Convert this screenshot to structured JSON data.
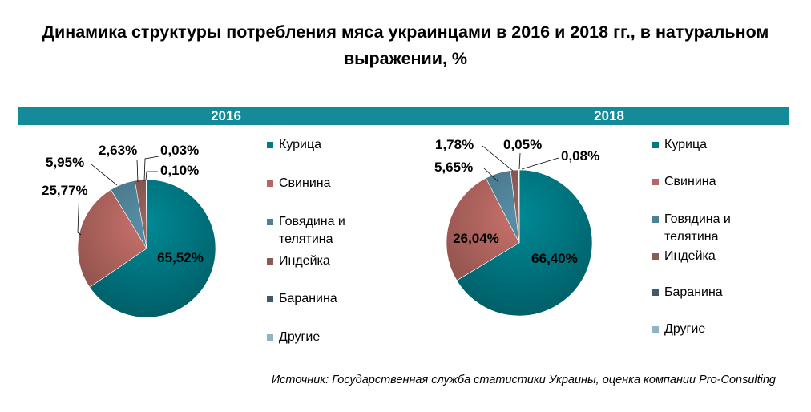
{
  "title": "Динамика структуры потребления мяса украинцами в 2016 и 2018 гг., в натуральном выражении, %",
  "source": "Источник: Государственная служба статистики Украины, оценка компании Pro-Consulting",
  "colors": {
    "band": "#138b98",
    "Курица": "#007a85",
    "Свинина": "#b46660",
    "Говядина и телятина": "#4f8196",
    "Индейка": "#8a5a55",
    "Баранина": "#3f5a6a",
    "Другие": "#8fb4c4"
  },
  "chart_data": [
    {
      "type": "pie",
      "title": "2016",
      "labels": [
        "Курица",
        "Свинина",
        "Говядина и телятина",
        "Индейка",
        "Баранина",
        "Другие"
      ],
      "values": [
        65.52,
        25.77,
        5.95,
        2.63,
        0.03,
        0.1
      ],
      "data_labels": [
        "65,52%",
        "25,77%",
        "5,95%",
        "2,63%",
        "0,03%",
        "0,10%"
      ],
      "legend": "right"
    },
    {
      "type": "pie",
      "title": "2018",
      "labels": [
        "Курица",
        "Свинина",
        "Говядина и телятина",
        "Индейка",
        "Баранина",
        "Другие"
      ],
      "values": [
        66.4,
        26.04,
        5.65,
        1.78,
        0.05,
        0.08
      ],
      "data_labels": [
        "66,40%",
        "26,04%",
        "5,65%",
        "1,78%",
        "0,05%",
        "0,08%"
      ],
      "legend": "right"
    }
  ]
}
